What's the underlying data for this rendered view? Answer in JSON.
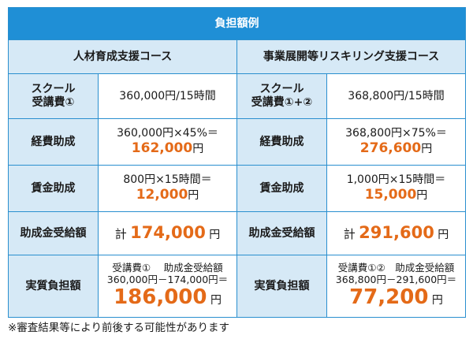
{
  "table": {
    "title": "負担額例",
    "course_left": "人材育成支援コース",
    "course_right": "事業展開等リスキリング支援コース",
    "rows": {
      "school": {
        "label_left_1": "スクール",
        "label_left_2": "受講費①",
        "value_left": "360,000円/15時間",
        "label_right_1": "スクール",
        "label_right_2": "受講費①+②",
        "value_right": "368,800円/15時間"
      },
      "keihi": {
        "label": "経費助成",
        "left_formula": "360,000円×45%＝",
        "left_amount": "162,000",
        "right_formula": "368,800円×75%＝",
        "right_amount": "276,600",
        "yen": "円"
      },
      "chingin": {
        "label": "賃金助成",
        "left_formula": "800円×15時間＝",
        "left_amount": "12,000",
        "right_formula": "1,000円×15時間＝",
        "right_amount": "15,000",
        "yen": "円"
      },
      "jukyu": {
        "label": "助成金受給額",
        "prefix": "計",
        "left_amount": "174,000",
        "right_amount": "291,600",
        "yen": "円"
      },
      "jisshitsu": {
        "label": "実質負担額",
        "left_head": "受講費①　 助成金受給額",
        "left_calc": "360,000円－174,000円＝",
        "left_amount": "186,000",
        "right_head": "受講費①②　助成金受給額",
        "right_calc": "368,800円－291,600円＝",
        "right_amount": "77,200",
        "yen": "円"
      }
    }
  },
  "note": "※審査結果等により前後する可能性があります",
  "colors": {
    "header_blue": "#1f8fd6",
    "light_blue": "#d6e9f6",
    "accent_orange": "#e46a18"
  }
}
